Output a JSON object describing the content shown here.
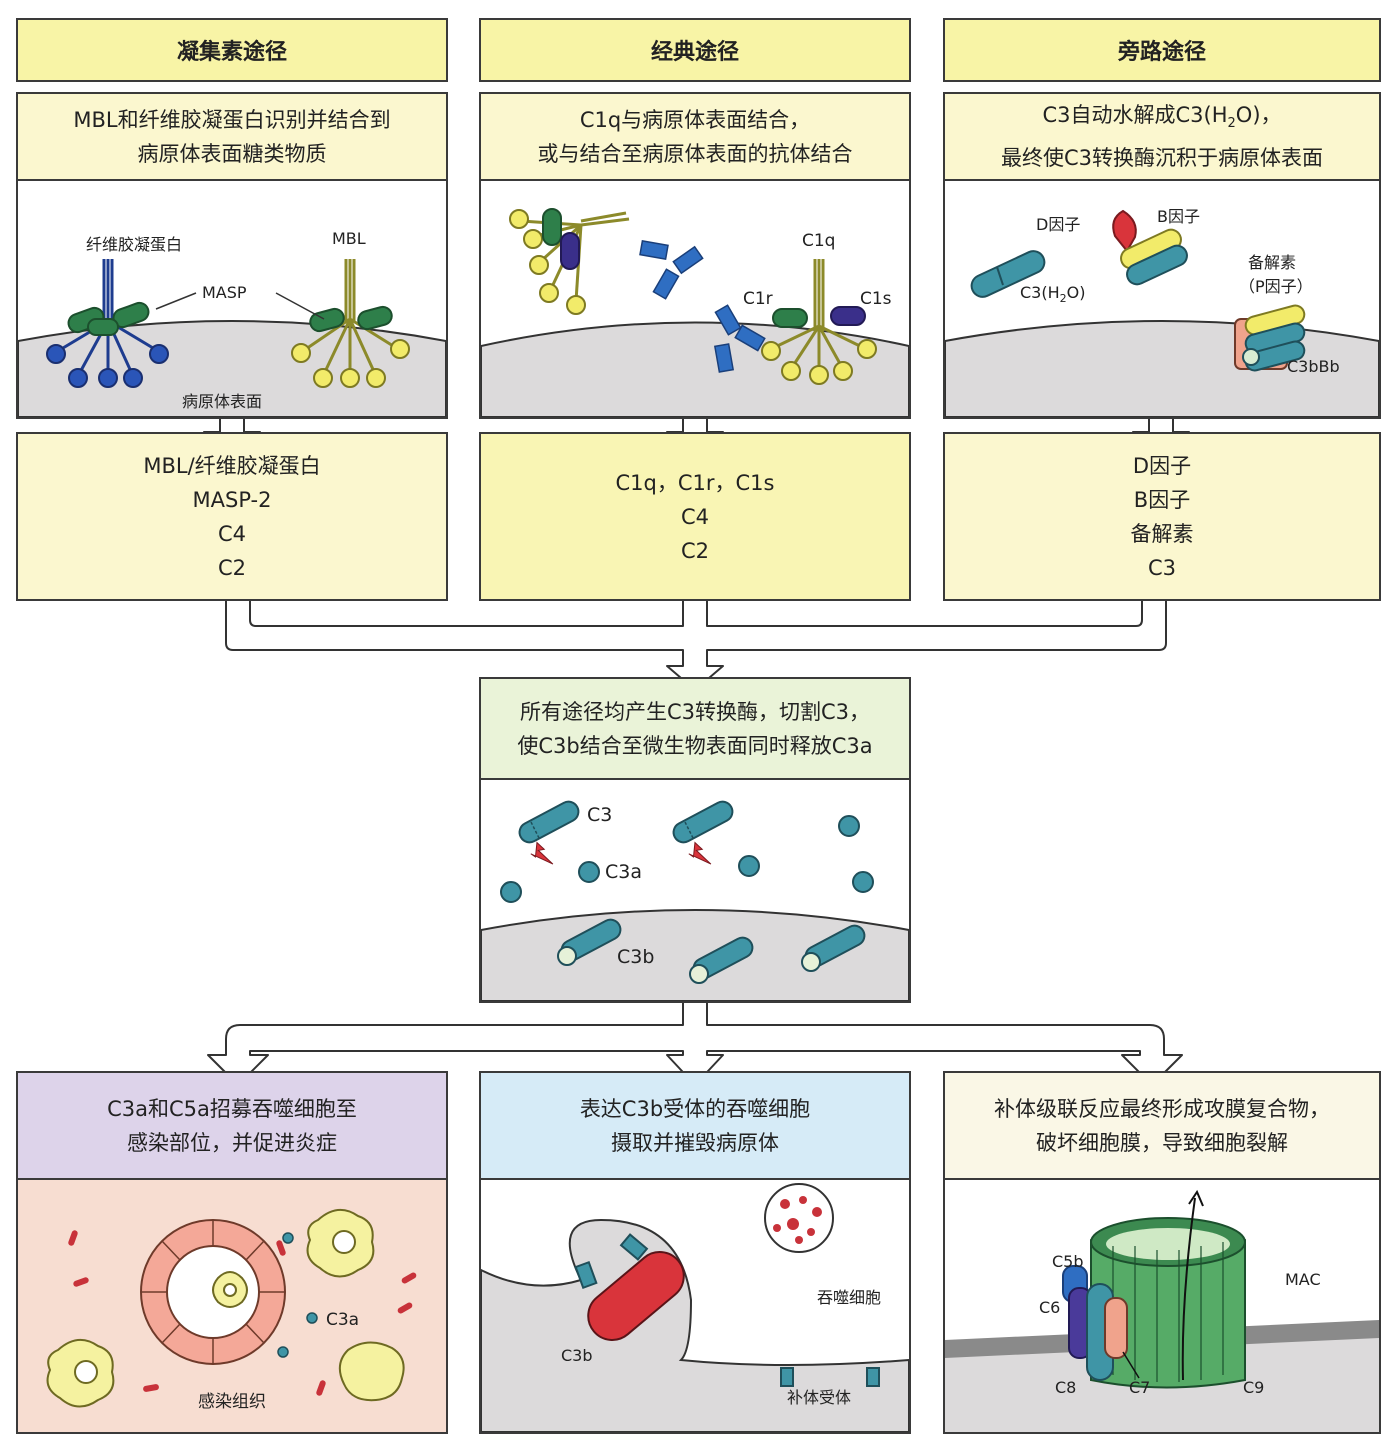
{
  "lectin": {
    "header": "凝集素途径",
    "desc": [
      "MBL和纤维胶凝蛋白识别并结合到",
      "病原体表面糖类物质"
    ],
    "labels": {
      "ficolin": "纤维胶凝蛋白",
      "mbl": "MBL",
      "masp": "MASP",
      "surface": "病原体表面"
    },
    "components": [
      "MBL/纤维胶凝蛋白",
      "MASP-2",
      "C4",
      "C2"
    ]
  },
  "classical": {
    "header": "经典途径",
    "desc": [
      "C1q与病原体表面结合，",
      "或与结合至病原体表面的抗体结合"
    ],
    "labels": {
      "c1q": "C1q",
      "c1r": "C1r",
      "c1s": "C1s"
    },
    "components": [
      "C1q，C1r，C1s",
      "C4",
      "C2"
    ]
  },
  "alternative": {
    "header": "旁路途径",
    "desc_line1_pre": "C3自动水解成C3(H",
    "desc_line1_sub": "2",
    "desc_line1_post": "O)，",
    "desc_line2": "最终使C3转换酶沉积于病原体表面",
    "labels": {
      "factor_d": "D因子",
      "factor_b": "B因子",
      "c3h2o_pre": "C3(H",
      "c3h2o_sub": "2",
      "c3h2o_post": "O)",
      "properdin": "备解素",
      "properdin2": "（P因子）",
      "c3bbb": "C3bBb"
    },
    "components": [
      "D因子",
      "B因子",
      "备解素",
      "C3"
    ]
  },
  "convertase": {
    "desc": [
      "所有途径均产生C3转换酶，切割C3，",
      "使C3b结合至微生物表面同时释放C3a"
    ],
    "labels": {
      "c3": "C3",
      "c3a": "C3a",
      "c3b": "C3b"
    }
  },
  "inflammation": {
    "desc": [
      "C3a和C5a招募吞噬细胞至",
      "感染部位，并促进炎症"
    ],
    "labels": {
      "c3a": "C3a",
      "tissue": "感染组织"
    }
  },
  "phagocytosis": {
    "desc": [
      "表达C3b受体的吞噬细胞",
      "摄取并摧毁病原体"
    ],
    "labels": {
      "c3b": "C3b",
      "phagocyte": "吞噬细胞",
      "receptor": "补体受体"
    }
  },
  "mac": {
    "desc": [
      "补体级联反应最终形成攻膜复合物，",
      "破坏细胞膜，导致细胞裂解"
    ],
    "labels": {
      "c5b": "C5b",
      "c6": "C6",
      "c7": "C7",
      "c8": "C8",
      "c9": "C9",
      "mac": "MAC"
    }
  },
  "colors": {
    "header": "#f8f4a6",
    "yellow": "#fbf7cf",
    "green": "#eaf3d8",
    "purple": "#ddd3ea",
    "blue": "#d6ebf7",
    "teal": "#3f95a6",
    "surface": "#dcdadb"
  }
}
